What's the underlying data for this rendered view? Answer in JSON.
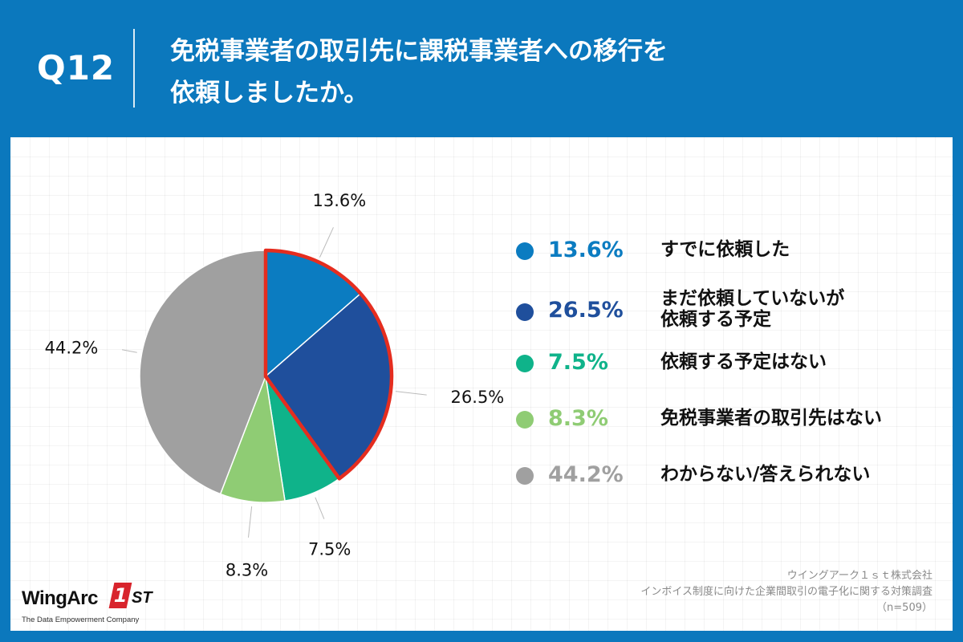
{
  "header": {
    "q_label": "Q12",
    "question": "免税事業者の取引先に課税事業者への移行を\n依頼しましたか。"
  },
  "colors": {
    "background": "#0b78bd",
    "highlight_border": "#e52d1f"
  },
  "chart_data": {
    "type": "pie",
    "title": "",
    "start_angle_deg": 0,
    "direction": "clockwise",
    "highlighted_slices": [
      0,
      1
    ],
    "slices": [
      {
        "value": 13.6,
        "label": "13.6%",
        "category": "すでに依頼した",
        "color": "#0b7cc1"
      },
      {
        "value": 26.5,
        "label": "26.5%",
        "category": "まだ依頼していないが\n依頼する予定",
        "color": "#1f4f9c"
      },
      {
        "value": 7.5,
        "label": "7.5%",
        "category": "依頼する予定はない",
        "color": "#0fb38a"
      },
      {
        "value": 8.3,
        "label": "8.3%",
        "category": "免税事業者の取引先はない",
        "color": "#8fcc74"
      },
      {
        "value": 44.2,
        "label": "44.2%",
        "category": "わからない/答えられない",
        "color": "#a0a0a0"
      }
    ]
  },
  "logo": {
    "word": "WingArc",
    "mark": "1",
    "suffix": "ST",
    "tagline": "The Data Empowerment Company"
  },
  "source": {
    "line1": "ウイングアーク１ｓｔ株式会社",
    "line2": "インボイス制度に向けた企業間取引の電子化に関する対策調査",
    "line3": "（n=509）"
  }
}
